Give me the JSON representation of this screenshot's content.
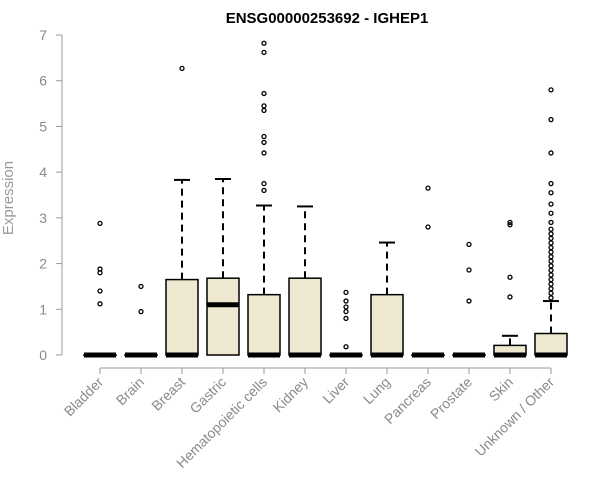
{
  "chart_data": {
    "type": "boxplot",
    "title": "ENSG00000253692 - IGHEP1",
    "xlabel": "",
    "ylabel": "Expression",
    "ylim": [
      0,
      7
    ],
    "yticks": [
      0,
      1,
      2,
      3,
      4,
      5,
      6,
      7
    ],
    "categories": [
      "Bladder",
      "Brain",
      "Breast",
      "Gastric",
      "Hematopoietic cells",
      "Kidney",
      "Liver",
      "Lung",
      "Pancreas",
      "Prostate",
      "Skin",
      "Unknown / Other"
    ],
    "box_color": "#ede8cf",
    "series": [
      {
        "category": "Bladder",
        "q1": 0,
        "median": 0,
        "q3": 0,
        "whisker_low": 0,
        "whisker_high": 0,
        "outliers": [
          1.12,
          1.4,
          1.8,
          1.88,
          2.88
        ]
      },
      {
        "category": "Brain",
        "q1": 0,
        "median": 0,
        "q3": 0,
        "whisker_low": 0,
        "whisker_high": 0,
        "outliers": [
          0.95,
          1.5
        ]
      },
      {
        "category": "Breast",
        "q1": 0,
        "median": 0,
        "q3": 1.65,
        "whisker_low": 0,
        "whisker_high": 3.83,
        "outliers": [
          6.27
        ]
      },
      {
        "category": "Gastric",
        "q1": 0,
        "median": 1.1,
        "q3": 1.68,
        "whisker_low": 0,
        "whisker_high": 3.85,
        "outliers": []
      },
      {
        "category": "Hematopoietic cells",
        "q1": 0,
        "median": 0,
        "q3": 1.32,
        "whisker_low": 0,
        "whisker_high": 3.27,
        "outliers": [
          3.6,
          3.75,
          4.42,
          4.65,
          4.78,
          5.35,
          5.45,
          5.72,
          6.62,
          6.82
        ]
      },
      {
        "category": "Kidney",
        "q1": 0,
        "median": 0,
        "q3": 1.68,
        "whisker_low": 0,
        "whisker_high": 3.25,
        "outliers": []
      },
      {
        "category": "Liver",
        "q1": 0,
        "median": 0,
        "q3": 0,
        "whisker_low": 0,
        "whisker_high": 0,
        "outliers": [
          0.18,
          0.8,
          0.95,
          1.05,
          1.18,
          1.37
        ]
      },
      {
        "category": "Lung",
        "q1": 0,
        "median": 0,
        "q3": 1.32,
        "whisker_low": 0,
        "whisker_high": 2.46,
        "outliers": []
      },
      {
        "category": "Pancreas",
        "q1": 0,
        "median": 0,
        "q3": 0,
        "whisker_low": 0,
        "whisker_high": 0,
        "outliers": [
          2.8,
          3.65
        ]
      },
      {
        "category": "Prostate",
        "q1": 0,
        "median": 0,
        "q3": 0,
        "whisker_low": 0,
        "whisker_high": 0,
        "outliers": [
          1.18,
          1.86,
          2.42
        ]
      },
      {
        "category": "Skin",
        "q1": 0,
        "median": 0,
        "q3": 0.21,
        "whisker_low": 0,
        "whisker_high": 0.42,
        "outliers": [
          1.27,
          1.7,
          2.85,
          2.9
        ]
      },
      {
        "category": "Unknown / Other",
        "q1": 0,
        "median": 0,
        "q3": 0.47,
        "whisker_low": 0,
        "whisker_high": 1.18,
        "outliers": [
          1.25,
          1.35,
          1.45,
          1.55,
          1.65,
          1.75,
          1.85,
          1.95,
          2.05,
          2.15,
          2.25,
          2.35,
          2.45,
          2.55,
          2.65,
          2.75,
          2.9,
          3.1,
          3.3,
          3.55,
          3.75,
          4.42,
          5.15,
          5.8
        ]
      }
    ]
  }
}
